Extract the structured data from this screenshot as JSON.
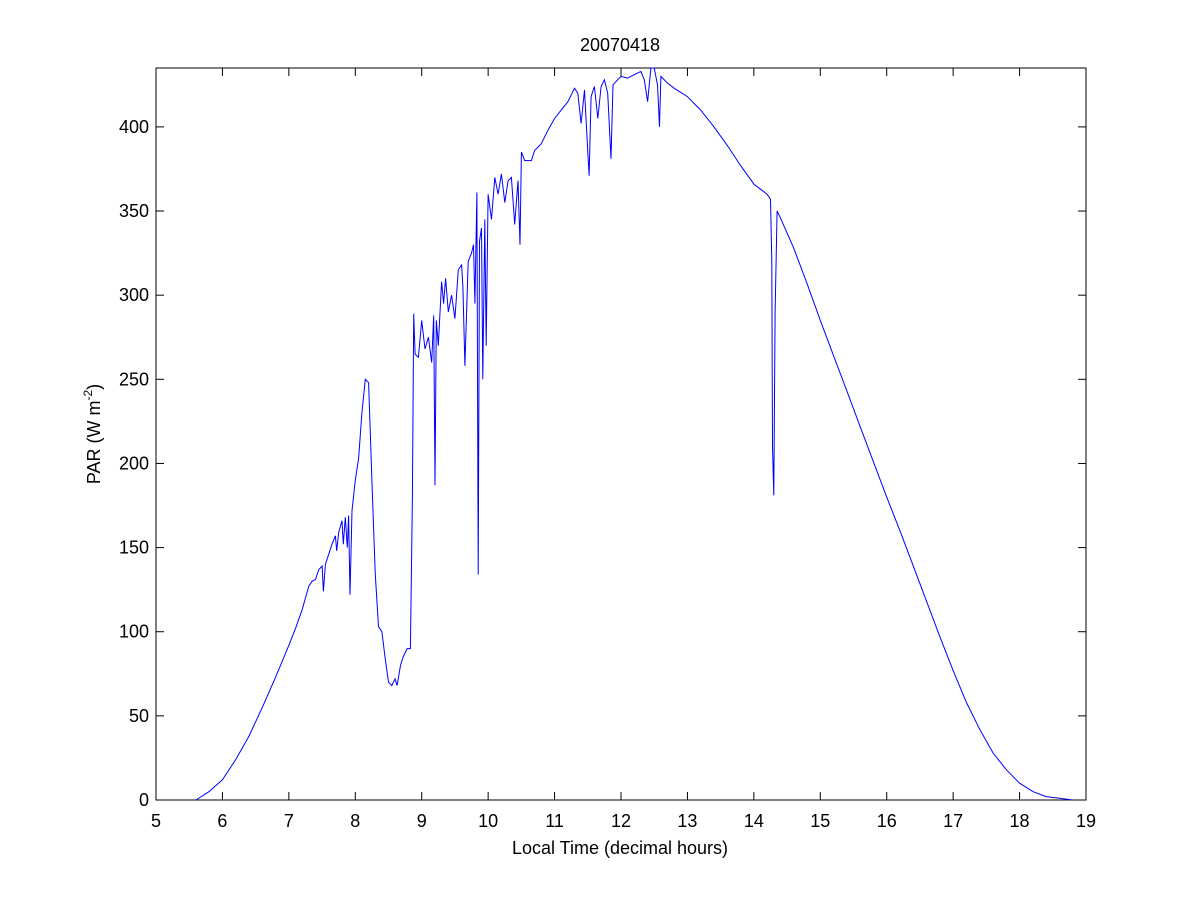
{
  "chart_data": {
    "type": "line",
    "title": "20070418",
    "xlabel": "Local Time (decimal hours)",
    "ylabel_main": "PAR (W m",
    "ylabel_sup": "-2",
    "ylabel_end": ")",
    "xlim": [
      5,
      19
    ],
    "ylim": [
      0,
      435
    ],
    "xticks": [
      5,
      6,
      7,
      8,
      9,
      10,
      11,
      12,
      13,
      14,
      15,
      16,
      17,
      18,
      19
    ],
    "yticks": [
      0,
      50,
      100,
      150,
      200,
      250,
      300,
      350,
      400
    ],
    "grid": false,
    "series": [
      {
        "color": "#0000ff",
        "points": [
          [
            5.6,
            0
          ],
          [
            5.8,
            5
          ],
          [
            6.0,
            12
          ],
          [
            6.2,
            24
          ],
          [
            6.4,
            38
          ],
          [
            6.6,
            55
          ],
          [
            6.8,
            73
          ],
          [
            7.0,
            92
          ],
          [
            7.1,
            102
          ],
          [
            7.2,
            113
          ],
          [
            7.3,
            127
          ],
          [
            7.35,
            130
          ],
          [
            7.4,
            131
          ],
          [
            7.45,
            137
          ],
          [
            7.5,
            139
          ],
          [
            7.52,
            124
          ],
          [
            7.55,
            140
          ],
          [
            7.6,
            146
          ],
          [
            7.65,
            152
          ],
          [
            7.7,
            157
          ],
          [
            7.72,
            148
          ],
          [
            7.75,
            159
          ],
          [
            7.8,
            166
          ],
          [
            7.82,
            152
          ],
          [
            7.85,
            168
          ],
          [
            7.88,
            150
          ],
          [
            7.9,
            169
          ],
          [
            7.92,
            122
          ],
          [
            7.95,
            172
          ],
          [
            8.0,
            190
          ],
          [
            8.05,
            203
          ],
          [
            8.1,
            230
          ],
          [
            8.15,
            250
          ],
          [
            8.2,
            248
          ],
          [
            8.25,
            190
          ],
          [
            8.3,
            135
          ],
          [
            8.35,
            103
          ],
          [
            8.4,
            100
          ],
          [
            8.45,
            84
          ],
          [
            8.5,
            70
          ],
          [
            8.55,
            68
          ],
          [
            8.6,
            72
          ],
          [
            8.63,
            68
          ],
          [
            8.68,
            80
          ],
          [
            8.72,
            85
          ],
          [
            8.78,
            90
          ],
          [
            8.83,
            90
          ],
          [
            8.86,
            180
          ],
          [
            8.88,
            289
          ],
          [
            8.9,
            265
          ],
          [
            8.95,
            263
          ],
          [
            9.0,
            285
          ],
          [
            9.05,
            268
          ],
          [
            9.1,
            275
          ],
          [
            9.15,
            260
          ],
          [
            9.18,
            288
          ],
          [
            9.2,
            187
          ],
          [
            9.22,
            285
          ],
          [
            9.25,
            270
          ],
          [
            9.3,
            308
          ],
          [
            9.33,
            295
          ],
          [
            9.36,
            310
          ],
          [
            9.4,
            290
          ],
          [
            9.45,
            300
          ],
          [
            9.5,
            286
          ],
          [
            9.55,
            315
          ],
          [
            9.6,
            318
          ],
          [
            9.62,
            305
          ],
          [
            9.65,
            258
          ],
          [
            9.7,
            320
          ],
          [
            9.75,
            325
          ],
          [
            9.78,
            330
          ],
          [
            9.8,
            295
          ],
          [
            9.83,
            361
          ],
          [
            9.85,
            134
          ],
          [
            9.87,
            332
          ],
          [
            9.9,
            340
          ],
          [
            9.92,
            250
          ],
          [
            9.95,
            345
          ],
          [
            9.97,
            270
          ],
          [
            10.0,
            360
          ],
          [
            10.05,
            345
          ],
          [
            10.1,
            370
          ],
          [
            10.15,
            360
          ],
          [
            10.2,
            372
          ],
          [
            10.25,
            355
          ],
          [
            10.3,
            368
          ],
          [
            10.35,
            370
          ],
          [
            10.4,
            342
          ],
          [
            10.45,
            368
          ],
          [
            10.48,
            330
          ],
          [
            10.5,
            385
          ],
          [
            10.55,
            380
          ],
          [
            10.6,
            380
          ],
          [
            10.65,
            380
          ],
          [
            10.7,
            386
          ],
          [
            10.8,
            390
          ],
          [
            10.9,
            398
          ],
          [
            11.0,
            405
          ],
          [
            11.1,
            410
          ],
          [
            11.2,
            415
          ],
          [
            11.3,
            423
          ],
          [
            11.35,
            420
          ],
          [
            11.4,
            402
          ],
          [
            11.45,
            422
          ],
          [
            11.5,
            385
          ],
          [
            11.52,
            371
          ],
          [
            11.55,
            418
          ],
          [
            11.6,
            424
          ],
          [
            11.65,
            405
          ],
          [
            11.7,
            424
          ],
          [
            11.75,
            428
          ],
          [
            11.8,
            420
          ],
          [
            11.85,
            381
          ],
          [
            11.88,
            425
          ],
          [
            11.95,
            428
          ],
          [
            12.0,
            430
          ],
          [
            12.1,
            429
          ],
          [
            12.2,
            431
          ],
          [
            12.3,
            433
          ],
          [
            12.35,
            428
          ],
          [
            12.4,
            415
          ],
          [
            12.45,
            435
          ],
          [
            12.5,
            435
          ],
          [
            12.55,
            425
          ],
          [
            12.58,
            400
          ],
          [
            12.6,
            430
          ],
          [
            12.7,
            426
          ],
          [
            12.8,
            423
          ],
          [
            13.0,
            418
          ],
          [
            13.2,
            410
          ],
          [
            13.4,
            400
          ],
          [
            13.6,
            389
          ],
          [
            13.8,
            377
          ],
          [
            14.0,
            366
          ],
          [
            14.2,
            360
          ],
          [
            14.25,
            357
          ],
          [
            14.27,
            320
          ],
          [
            14.28,
            210
          ],
          [
            14.3,
            181
          ],
          [
            14.32,
            290
          ],
          [
            14.35,
            350
          ],
          [
            14.4,
            346
          ],
          [
            14.6,
            328
          ],
          [
            14.8,
            307
          ],
          [
            15.0,
            285
          ],
          [
            15.2,
            264
          ],
          [
            15.4,
            243
          ],
          [
            15.6,
            222
          ],
          [
            15.8,
            201
          ],
          [
            16.0,
            180
          ],
          [
            16.2,
            160
          ],
          [
            16.4,
            139
          ],
          [
            16.6,
            118
          ],
          [
            16.8,
            97
          ],
          [
            17.0,
            77
          ],
          [
            17.2,
            58
          ],
          [
            17.4,
            42
          ],
          [
            17.6,
            28
          ],
          [
            17.8,
            18
          ],
          [
            18.0,
            10
          ],
          [
            18.2,
            5
          ],
          [
            18.4,
            2
          ],
          [
            18.6,
            1
          ],
          [
            18.8,
            0
          ]
        ]
      }
    ]
  }
}
